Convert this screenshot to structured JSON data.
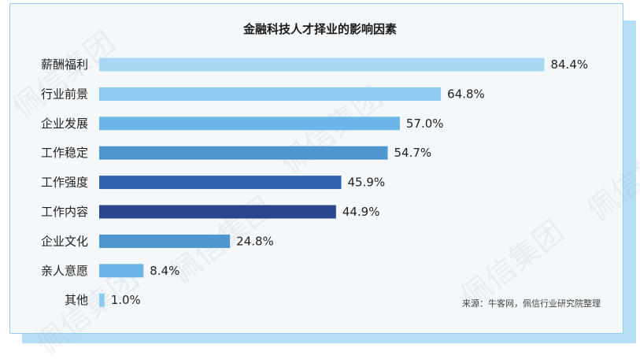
{
  "colors": {
    "card_bg": "#f4f8fb",
    "card_border": "#8fcdf0",
    "shadow": "#b6def5"
  },
  "watermark": "佩信集团",
  "source": "来源：牛客网，佩信行业研究院整理",
  "chart_data": {
    "type": "bar",
    "orientation": "horizontal",
    "title": "金融科技人才择业的影响因素",
    "xlabel": "",
    "ylabel": "",
    "xlim": [
      0,
      100
    ],
    "grid": false,
    "categories": [
      "薪酬福利",
      "行业前景",
      "企业发展",
      "工作稳定",
      "工作强度",
      "工作内容",
      "企业文化",
      "亲人意愿",
      "其他"
    ],
    "values": [
      84.4,
      64.8,
      57.0,
      54.7,
      45.9,
      44.9,
      24.8,
      8.4,
      1.0
    ],
    "labels": [
      "84.4%",
      "64.8%",
      "57.0%",
      "54.7%",
      "45.9%",
      "44.9%",
      "24.8%",
      "8.4%",
      "1.0%"
    ],
    "bar_colors": [
      "#a9d8f3",
      "#8ccbee",
      "#6bb6e6",
      "#4f96cf",
      "#3163b2",
      "#29468f",
      "#4f96cf",
      "#6bb6e6",
      "#8ccbee"
    ]
  }
}
